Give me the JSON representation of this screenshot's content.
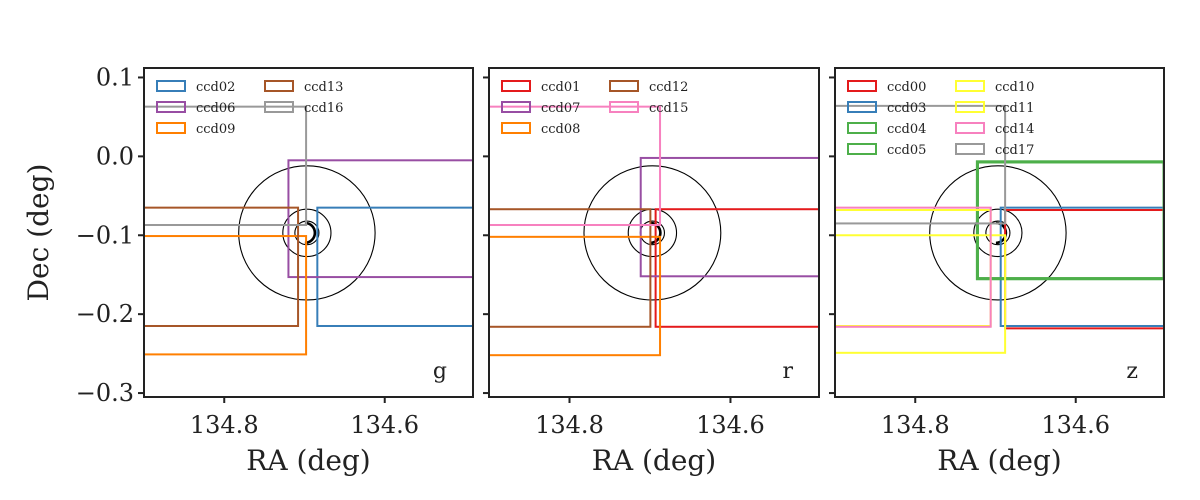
{
  "chart_data": [
    {
      "type": "line",
      "band": "g",
      "xlabel": "RA (deg)",
      "ylabel": "Dec (deg)",
      "xlim": [
        134.9,
        134.49
      ],
      "ylim": [
        -0.305,
        0.112
      ],
      "xticks": [
        134.8,
        134.6
      ],
      "xtick_labels": [
        "134.8",
        "134.6"
      ],
      "yticks": [
        0.1,
        0.0,
        -0.1,
        -0.2,
        -0.3
      ],
      "ytick_labels": [
        "0.1",
        "0.0",
        "−0.1",
        "−0.2",
        "−0.3"
      ],
      "legend_placement": "upper left, 2 columns",
      "circles": {
        "center_ra": 134.697,
        "center_dec": -0.097,
        "radii": [
          0.015,
          0.03,
          0.085
        ]
      },
      "series": [
        {
          "name": "ccd02",
          "color": "#377eb8",
          "ra_min": 134.684,
          "ra_max": 134.49,
          "dec_min": -0.215,
          "dec_max": -0.065
        },
        {
          "name": "ccd06",
          "color": "#984ea3",
          "ra_min": 134.72,
          "ra_max": 134.49,
          "dec_min": -0.153,
          "dec_max": -0.005
        },
        {
          "name": "ccd09",
          "color": "#ff7f00",
          "ra_min": 134.9,
          "ra_max": 134.698,
          "dec_min": -0.251,
          "dec_max": -0.101
        },
        {
          "name": "ccd13",
          "color": "#a65628",
          "ra_min": 134.9,
          "ra_max": 134.708,
          "dec_min": -0.215,
          "dec_max": -0.065
        },
        {
          "name": "ccd16",
          "color": "#999999",
          "ra_min": 134.9,
          "ra_max": 134.698,
          "dec_min": -0.087,
          "dec_max": 0.063
        }
      ]
    },
    {
      "type": "line",
      "band": "r",
      "xlabel": "RA (deg)",
      "ylabel": "",
      "xlim": [
        134.9,
        134.49
      ],
      "ylim": [
        -0.305,
        0.112
      ],
      "xticks": [
        134.8,
        134.6
      ],
      "xtick_labels": [
        "134.8",
        "134.6"
      ],
      "legend_placement": "upper left, 2 columns",
      "circles": {
        "center_ra": 134.697,
        "center_dec": -0.097,
        "radii": [
          0.015,
          0.03,
          0.085
        ]
      },
      "series": [
        {
          "name": "ccd01",
          "color": "#e41a1c",
          "ra_min": 134.693,
          "ra_max": 134.49,
          "dec_min": -0.216,
          "dec_max": -0.067
        },
        {
          "name": "ccd07",
          "color": "#984ea3",
          "ra_min": 134.7115,
          "ra_max": 134.49,
          "dec_min": -0.152,
          "dec_max": -0.002
        },
        {
          "name": "ccd08",
          "color": "#ff7f00",
          "ra_min": 134.9,
          "ra_max": 134.6875,
          "dec_min": -0.252,
          "dec_max": -0.102
        },
        {
          "name": "ccd12",
          "color": "#a65628",
          "ra_min": 134.9,
          "ra_max": 134.6995,
          "dec_min": -0.216,
          "dec_max": -0.067
        },
        {
          "name": "ccd15",
          "color": "#f781bf",
          "ra_min": 134.9,
          "ra_max": 134.6875,
          "dec_min": -0.087,
          "dec_max": 0.063
        }
      ]
    },
    {
      "type": "line",
      "band": "z",
      "xlabel": "RA (deg)",
      "ylabel": "",
      "xlim": [
        134.9,
        134.49
      ],
      "ylim": [
        -0.305,
        0.112
      ],
      "xticks": [
        134.8,
        134.6
      ],
      "xtick_labels": [
        "134.8",
        "134.6"
      ],
      "legend_placement": "upper left, 2 columns",
      "circles": {
        "center_ra": 134.697,
        "center_dec": -0.097,
        "radii": [
          0.015,
          0.03,
          0.085
        ]
      },
      "series": [
        {
          "name": "ccd00",
          "color": "#e41a1c",
          "ra_min": 134.688,
          "ra_max": 134.49,
          "dec_min": -0.218,
          "dec_max": -0.068
        },
        {
          "name": "ccd03",
          "color": "#377eb8",
          "ra_min": 134.6935,
          "ra_max": 134.49,
          "dec_min": -0.215,
          "dec_max": -0.065
        },
        {
          "name": "ccd04",
          "color": "#4daf4a",
          "ra_min": 134.7225,
          "ra_max": 134.49,
          "dec_min": -0.155,
          "dec_max": -0.007
        },
        {
          "name": "ccd05",
          "color": "#4daf4a",
          "ra_min": 134.7225,
          "ra_max": 134.49,
          "dec_min": -0.155,
          "dec_max": -0.007
        },
        {
          "name": "ccd10",
          "color": "#ffff33",
          "ra_min": 134.9,
          "ra_max": 134.688,
          "dec_min": -0.249,
          "dec_max": -0.1
        },
        {
          "name": "ccd11",
          "color": "#ffff33",
          "ra_min": 134.9,
          "ra_max": 134.706,
          "dec_min": -0.215,
          "dec_max": -0.068
        },
        {
          "name": "ccd14",
          "color": "#f781bf",
          "ra_min": 134.9,
          "ra_max": 134.706,
          "dec_min": -0.216,
          "dec_max": -0.065
        },
        {
          "name": "ccd17",
          "color": "#999999",
          "ra_min": 134.9,
          "ra_max": 134.688,
          "dec_min": -0.085,
          "dec_max": 0.064
        }
      ]
    }
  ]
}
